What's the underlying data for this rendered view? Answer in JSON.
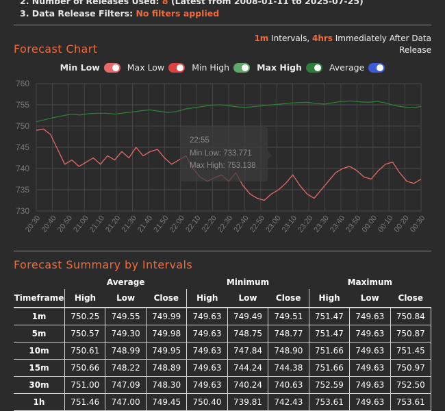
{
  "header": {
    "releases_line_prefix": "2. Number of Releases Used:",
    "releases_count": "8",
    "releases_range": "(Latest from 2008-01-11 to 2025-07-25)",
    "filters_label": "3. Data Release Filters:",
    "filters_value": "No filters applied"
  },
  "forecast_chart": {
    "title": "Forecast Chart",
    "interval_value": "1m",
    "interval_text": "Intervals,",
    "window_value": "4hrs",
    "window_text": "Immediately After Data Release"
  },
  "legend": [
    {
      "label": "Min Low",
      "color": "#e66a6a",
      "bold": true
    },
    {
      "label": "Max Low",
      "color": "#e04040",
      "bold": false
    },
    {
      "label": "Min High",
      "color": "#5fa86a",
      "bold": false
    },
    {
      "label": "Max High",
      "color": "#2e7d3a",
      "bold": true
    },
    {
      "label": "Average",
      "color": "#3b5bdb",
      "bold": false
    }
  ],
  "tooltip": {
    "time": "22:55",
    "min_low": "Min Low: 733.771",
    "max_high": "Max High: 753.138"
  },
  "chart_data": {
    "type": "line",
    "x_labels": [
      "20:30",
      "20:40",
      "20:50",
      "21:00",
      "21:10",
      "21:20",
      "21:30",
      "21:40",
      "21:50",
      "22:00",
      "22:10",
      "22:20",
      "22:30",
      "22:40",
      "22:50",
      "23:00",
      "23:10",
      "23:20",
      "23:30",
      "23:40",
      "23:50",
      "00:00",
      "00:10",
      "00:20",
      "00:30"
    ],
    "ylim": [
      730,
      760
    ],
    "y_ticks": [
      730,
      735,
      740,
      745,
      750,
      755,
      760
    ],
    "grid": true,
    "series": [
      {
        "color": "#2e7d3a",
        "values": [
          751.0,
          751.5,
          752.0,
          752.4,
          752.8,
          752.6,
          752.9,
          753.0,
          753.0,
          752.8,
          753.1,
          753.3,
          753.6,
          753.8,
          753.5,
          753.2,
          753.4,
          754.0,
          754.3,
          754.6,
          754.9,
          755.0,
          754.8,
          754.5,
          754.4,
          754.6,
          754.8,
          755.0,
          755.2,
          755.4,
          755.5,
          755.6,
          755.3,
          755.2,
          755.5,
          755.8,
          755.9,
          755.7,
          755.6,
          755.8,
          755.4,
          754.8,
          754.5,
          754.3,
          754.6
        ]
      },
      {
        "color": "#e66a6a",
        "values": [
          749.0,
          749.3,
          748.0,
          744.5,
          741.0,
          742.0,
          740.5,
          741.5,
          742.5,
          741.0,
          743.0,
          742.0,
          744.0,
          742.5,
          745.0,
          743.0,
          744.0,
          744.5,
          742.5,
          741.0,
          742.0,
          743.0,
          740.0,
          738.0,
          737.0,
          737.8,
          738.5,
          737.0,
          739.0,
          736.0,
          734.0,
          733.0,
          732.5,
          734.0,
          735.0,
          736.5,
          738.5,
          736.0,
          734.0,
          733.0,
          735.0,
          737.0,
          739.0,
          740.0,
          740.5,
          739.5,
          738.0,
          737.5,
          739.5,
          741.0,
          741.5,
          739.0,
          737.0,
          736.5,
          737.5
        ]
      }
    ]
  },
  "summary": {
    "title": "Forecast Summary by Intervals",
    "group_headers": [
      "Average",
      "Minimum",
      "Maximum"
    ],
    "timeframe_header": "Timeframe",
    "sub_headers": [
      "High",
      "Low",
      "Close",
      "High",
      "Low",
      "Close",
      "High",
      "Low",
      "Close"
    ],
    "rows": [
      {
        "tf": "1m",
        "values": [
          "750.25",
          "749.55",
          "749.99",
          "749.63",
          "749.49",
          "749.51",
          "751.47",
          "749.63",
          "750.84"
        ]
      },
      {
        "tf": "5m",
        "values": [
          "750.57",
          "749.30",
          "749.98",
          "749.63",
          "748.75",
          "748.77",
          "751.47",
          "749.63",
          "750.87"
        ]
      },
      {
        "tf": "10m",
        "values": [
          "750.61",
          "748.99",
          "749.95",
          "749.63",
          "747.84",
          "748.90",
          "751.66",
          "749.63",
          "751.45"
        ]
      },
      {
        "tf": "15m",
        "values": [
          "750.66",
          "748.22",
          "748.89",
          "749.63",
          "744.24",
          "744.38",
          "751.66",
          "749.63",
          "750.97"
        ]
      },
      {
        "tf": "30m",
        "values": [
          "751.00",
          "747.09",
          "748.30",
          "749.63",
          "740.24",
          "740.63",
          "752.59",
          "749.63",
          "752.50"
        ]
      },
      {
        "tf": "1h",
        "values": [
          "751.46",
          "747.00",
          "749.45",
          "750.40",
          "739.81",
          "742.43",
          "753.61",
          "749.63",
          "753.61"
        ]
      }
    ]
  }
}
